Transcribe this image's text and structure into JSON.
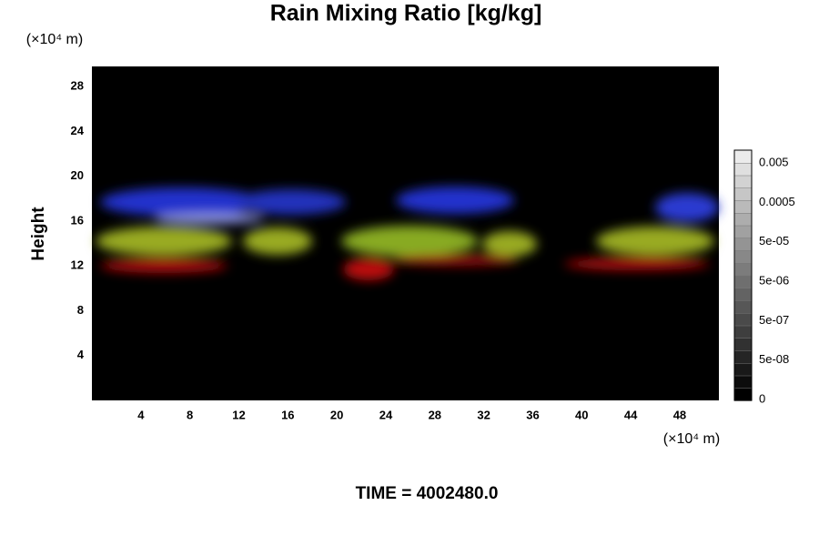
{
  "chart_data": {
    "type": "volume",
    "title": "Rain Mixing Ratio [kg/kg]",
    "y_label": "Height",
    "y_unit": "(×10⁴ m)",
    "x_unit": "(×10⁴ m)",
    "footer": "TIME = 4002480.0",
    "xlim": [
      0,
      51.2
    ],
    "xticks": [
      4,
      8,
      12,
      16,
      20,
      24,
      28,
      32,
      36,
      40,
      44,
      48
    ],
    "ylim": [
      0,
      29.8
    ],
    "yticks": [
      4,
      8,
      12,
      16,
      20,
      24,
      28
    ],
    "colorbar_labels": [
      "0",
      "5e-08",
      "5e-07",
      "5e-06",
      "5e-05",
      "0.0005",
      "0.005"
    ]
  }
}
